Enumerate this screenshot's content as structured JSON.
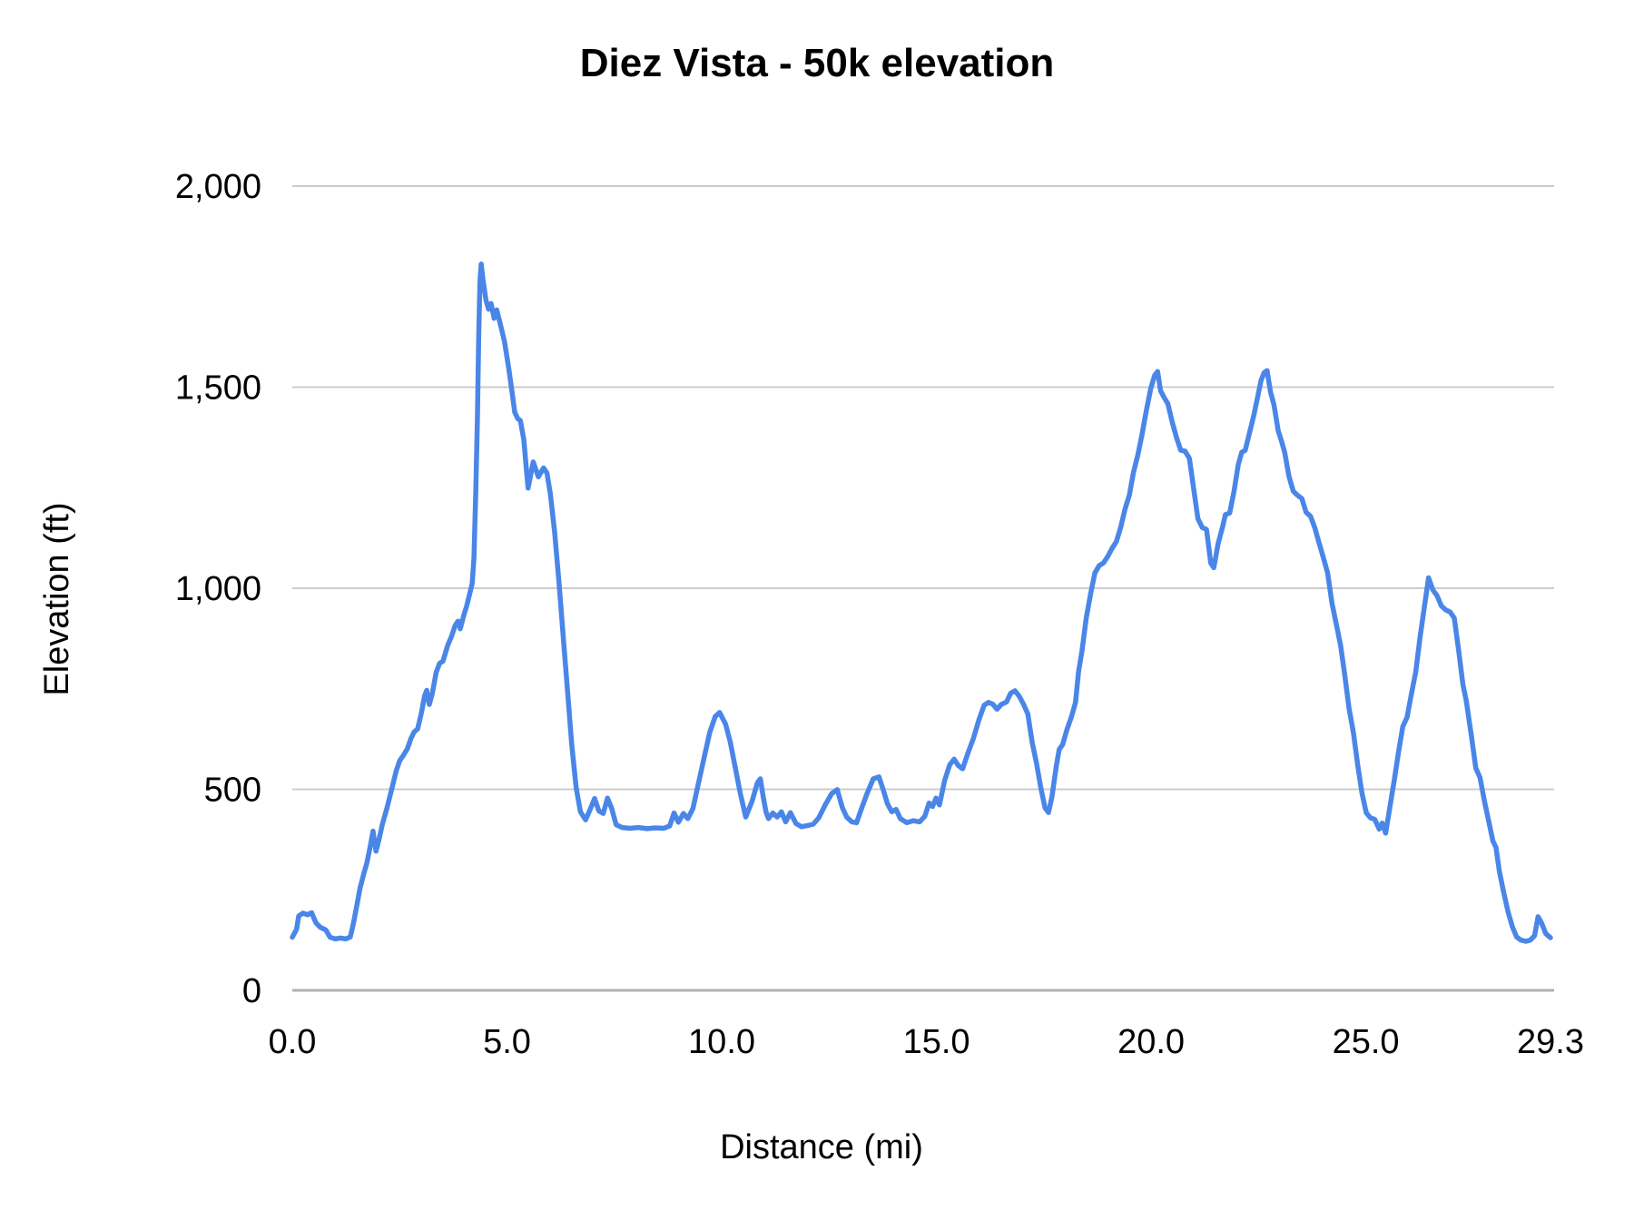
{
  "chart_data": {
    "type": "line",
    "title": "Diez Vista - 50k elevation",
    "xlabel": "Distance (mi)",
    "ylabel": "Elevation (ft)",
    "xlim": [
      0,
      29.3
    ],
    "ylim": [
      0,
      2000
    ],
    "grid": "horizontal-only",
    "legend_position": "none",
    "line_color": "#4a86e8",
    "gridline_color": "#cccccc",
    "baseline_color": "#b0b0b0",
    "text_color": "#000000",
    "background_color": "#ffffff",
    "x_ticks": [
      {
        "value": 0,
        "label": "0.0"
      },
      {
        "value": 5,
        "label": "5.0"
      },
      {
        "value": 10,
        "label": "10.0"
      },
      {
        "value": 15,
        "label": "15.0"
      },
      {
        "value": 20,
        "label": "20.0"
      },
      {
        "value": 25,
        "label": "25.0"
      },
      {
        "value": 29.3,
        "label": "29.3"
      }
    ],
    "y_ticks": [
      {
        "value": 0,
        "label": "0"
      },
      {
        "value": 500,
        "label": "500"
      },
      {
        "value": 1000,
        "label": "1,000"
      },
      {
        "value": 1500,
        "label": "1,500"
      },
      {
        "value": 2000,
        "label": "2,000"
      }
    ],
    "series": [
      {
        "name": "elevation",
        "points": [
          [
            0,
            132
          ],
          [
            0.1,
            152
          ],
          [
            0.15,
            185
          ],
          [
            0.25,
            192
          ],
          [
            0.35,
            188
          ],
          [
            0.45,
            193
          ],
          [
            0.55,
            168
          ],
          [
            0.65,
            157
          ],
          [
            0.78,
            150
          ],
          [
            0.88,
            132
          ],
          [
            1,
            128
          ],
          [
            1.12,
            130
          ],
          [
            1.25,
            128
          ],
          [
            1.35,
            133
          ],
          [
            1.42,
            165
          ],
          [
            1.5,
            210
          ],
          [
            1.58,
            255
          ],
          [
            1.66,
            288
          ],
          [
            1.74,
            318
          ],
          [
            1.81,
            355
          ],
          [
            1.88,
            396
          ],
          [
            1.95,
            346
          ],
          [
            2.02,
            376
          ],
          [
            2.1,
            414
          ],
          [
            2.2,
            452
          ],
          [
            2.32,
            502
          ],
          [
            2.42,
            546
          ],
          [
            2.5,
            571
          ],
          [
            2.58,
            583
          ],
          [
            2.68,
            601
          ],
          [
            2.76,
            626
          ],
          [
            2.84,
            643
          ],
          [
            2.92,
            650
          ],
          [
            3.01,
            692
          ],
          [
            3.08,
            732
          ],
          [
            3.13,
            746
          ],
          [
            3.19,
            711
          ],
          [
            3.26,
            738
          ],
          [
            3.35,
            791
          ],
          [
            3.43,
            813
          ],
          [
            3.51,
            819
          ],
          [
            3.62,
            858
          ],
          [
            3.71,
            881
          ],
          [
            3.79,
            907
          ],
          [
            3.86,
            918
          ],
          [
            3.91,
            899
          ],
          [
            3.99,
            931
          ],
          [
            4.06,
            956
          ],
          [
            4.13,
            986
          ],
          [
            4.19,
            1012
          ],
          [
            4.23,
            1075
          ],
          [
            4.27,
            1230
          ],
          [
            4.31,
            1420
          ],
          [
            4.34,
            1620
          ],
          [
            4.37,
            1762
          ],
          [
            4.4,
            1806
          ],
          [
            4.44,
            1768
          ],
          [
            4.51,
            1717
          ],
          [
            4.57,
            1694
          ],
          [
            4.63,
            1708
          ],
          [
            4.7,
            1671
          ],
          [
            4.76,
            1692
          ],
          [
            4.84,
            1658
          ],
          [
            4.94,
            1614
          ],
          [
            5.04,
            1547
          ],
          [
            5.11,
            1494
          ],
          [
            5.18,
            1438
          ],
          [
            5.25,
            1422
          ],
          [
            5.31,
            1417
          ],
          [
            5.39,
            1370
          ],
          [
            5.49,
            1249
          ],
          [
            5.61,
            1314
          ],
          [
            5.73,
            1277
          ],
          [
            5.85,
            1299
          ],
          [
            5.93,
            1287
          ],
          [
            6.01,
            1234
          ],
          [
            6.11,
            1139
          ],
          [
            6.21,
            1014
          ],
          [
            6.31,
            878
          ],
          [
            6.41,
            744
          ],
          [
            6.51,
            609
          ],
          [
            6.61,
            504
          ],
          [
            6.71,
            444
          ],
          [
            6.83,
            424
          ],
          [
            6.94,
            451
          ],
          [
            7.04,
            477
          ],
          [
            7.14,
            446
          ],
          [
            7.24,
            440
          ],
          [
            7.34,
            478
          ],
          [
            7.44,
            452
          ],
          [
            7.54,
            412
          ],
          [
            7.68,
            405
          ],
          [
            7.86,
            403
          ],
          [
            8.06,
            405
          ],
          [
            8.26,
            402
          ],
          [
            8.46,
            404
          ],
          [
            8.65,
            403
          ],
          [
            8.79,
            409
          ],
          [
            8.89,
            441
          ],
          [
            8.99,
            418
          ],
          [
            9.11,
            440
          ],
          [
            9.21,
            427
          ],
          [
            9.33,
            452
          ],
          [
            9.46,
            516
          ],
          [
            9.59,
            578
          ],
          [
            9.72,
            641
          ],
          [
            9.85,
            681
          ],
          [
            9.95,
            691
          ],
          [
            10.09,
            662
          ],
          [
            10.2,
            617
          ],
          [
            10.31,
            557
          ],
          [
            10.43,
            491
          ],
          [
            10.56,
            431
          ],
          [
            10.71,
            471
          ],
          [
            10.83,
            516
          ],
          [
            10.9,
            526
          ],
          [
            10.97,
            479
          ],
          [
            11.03,
            444
          ],
          [
            11.09,
            427
          ],
          [
            11.19,
            441
          ],
          [
            11.29,
            431
          ],
          [
            11.39,
            444
          ],
          [
            11.49,
            419
          ],
          [
            11.6,
            442
          ],
          [
            11.73,
            415
          ],
          [
            11.86,
            407
          ],
          [
            12,
            410
          ],
          [
            12.13,
            413
          ],
          [
            12.26,
            429
          ],
          [
            12.41,
            461
          ],
          [
            12.56,
            489
          ],
          [
            12.69,
            499
          ],
          [
            12.81,
            454
          ],
          [
            12.91,
            431
          ],
          [
            13.03,
            419
          ],
          [
            13.14,
            417
          ],
          [
            13.26,
            453
          ],
          [
            13.39,
            491
          ],
          [
            13.53,
            526
          ],
          [
            13.66,
            531
          ],
          [
            13.76,
            499
          ],
          [
            13.86,
            464
          ],
          [
            13.96,
            444
          ],
          [
            14.06,
            450
          ],
          [
            14.16,
            427
          ],
          [
            14.31,
            417
          ],
          [
            14.46,
            422
          ],
          [
            14.61,
            419
          ],
          [
            14.73,
            433
          ],
          [
            14.83,
            466
          ],
          [
            14.91,
            457
          ],
          [
            14.99,
            478
          ],
          [
            15.07,
            461
          ],
          [
            15.19,
            521
          ],
          [
            15.31,
            561
          ],
          [
            15.41,
            575
          ],
          [
            15.51,
            559
          ],
          [
            15.61,
            551
          ],
          [
            15.73,
            589
          ],
          [
            15.86,
            626
          ],
          [
            15.99,
            673
          ],
          [
            16.11,
            709
          ],
          [
            16.21,
            716
          ],
          [
            16.31,
            712
          ],
          [
            16.41,
            699
          ],
          [
            16.51,
            711
          ],
          [
            16.63,
            717
          ],
          [
            16.73,
            739
          ],
          [
            16.83,
            745
          ],
          [
            16.93,
            731
          ],
          [
            17.03,
            711
          ],
          [
            17.13,
            687
          ],
          [
            17.23,
            617
          ],
          [
            17.33,
            565
          ],
          [
            17.43,
            504
          ],
          [
            17.53,
            454
          ],
          [
            17.61,
            442
          ],
          [
            17.69,
            481
          ],
          [
            17.79,
            556
          ],
          [
            17.86,
            599
          ],
          [
            17.94,
            611
          ],
          [
            18.04,
            649
          ],
          [
            18.14,
            679
          ],
          [
            18.24,
            716
          ],
          [
            18.31,
            792
          ],
          [
            18.39,
            844
          ],
          [
            18.49,
            926
          ],
          [
            18.59,
            986
          ],
          [
            18.69,
            1038
          ],
          [
            18.79,
            1056
          ],
          [
            18.89,
            1063
          ],
          [
            18.99,
            1079
          ],
          [
            19.09,
            1099
          ],
          [
            19.19,
            1116
          ],
          [
            19.29,
            1151
          ],
          [
            19.39,
            1196
          ],
          [
            19.49,
            1231
          ],
          [
            19.59,
            1289
          ],
          [
            19.69,
            1331
          ],
          [
            19.79,
            1383
          ],
          [
            19.89,
            1443
          ],
          [
            19.99,
            1496
          ],
          [
            20.08,
            1529
          ],
          [
            20.15,
            1539
          ],
          [
            20.22,
            1491
          ],
          [
            20.31,
            1473
          ],
          [
            20.39,
            1459
          ],
          [
            20.49,
            1413
          ],
          [
            20.59,
            1375
          ],
          [
            20.69,
            1343
          ],
          [
            20.79,
            1341
          ],
          [
            20.89,
            1323
          ],
          [
            20.99,
            1248
          ],
          [
            21.09,
            1173
          ],
          [
            21.19,
            1151
          ],
          [
            21.29,
            1146
          ],
          [
            21.39,
            1062
          ],
          [
            21.46,
            1051
          ],
          [
            21.56,
            1111
          ],
          [
            21.66,
            1151
          ],
          [
            21.73,
            1183
          ],
          [
            21.83,
            1187
          ],
          [
            21.93,
            1241
          ],
          [
            22.03,
            1308
          ],
          [
            22.11,
            1338
          ],
          [
            22.19,
            1343
          ],
          [
            22.29,
            1386
          ],
          [
            22.39,
            1429
          ],
          [
            22.49,
            1481
          ],
          [
            22.56,
            1517
          ],
          [
            22.63,
            1536
          ],
          [
            22.7,
            1541
          ],
          [
            22.78,
            1488
          ],
          [
            22.86,
            1456
          ],
          [
            22.96,
            1391
          ],
          [
            23.03,
            1368
          ],
          [
            23.11,
            1338
          ],
          [
            23.21,
            1278
          ],
          [
            23.31,
            1241
          ],
          [
            23.41,
            1231
          ],
          [
            23.51,
            1223
          ],
          [
            23.61,
            1189
          ],
          [
            23.71,
            1179
          ],
          [
            23.81,
            1151
          ],
          [
            23.91,
            1113
          ],
          [
            24.01,
            1076
          ],
          [
            24.11,
            1038
          ],
          [
            24.21,
            964
          ],
          [
            24.31,
            911
          ],
          [
            24.41,
            859
          ],
          [
            24.51,
            784
          ],
          [
            24.61,
            701
          ],
          [
            24.71,
            641
          ],
          [
            24.81,
            561
          ],
          [
            24.91,
            491
          ],
          [
            25.01,
            441
          ],
          [
            25.11,
            429
          ],
          [
            25.21,
            425
          ],
          [
            25.31,
            401
          ],
          [
            25.38,
            416
          ],
          [
            25.46,
            391
          ],
          [
            25.56,
            456
          ],
          [
            25.66,
            521
          ],
          [
            25.76,
            591
          ],
          [
            25.86,
            656
          ],
          [
            25.96,
            679
          ],
          [
            26.06,
            736
          ],
          [
            26.16,
            791
          ],
          [
            26.26,
            876
          ],
          [
            26.36,
            951
          ],
          [
            26.46,
            1026
          ],
          [
            26.56,
            996
          ],
          [
            26.66,
            981
          ],
          [
            26.76,
            956
          ],
          [
            26.86,
            946
          ],
          [
            26.96,
            941
          ],
          [
            27.06,
            926
          ],
          [
            27.16,
            846
          ],
          [
            27.26,
            761
          ],
          [
            27.34,
            719
          ],
          [
            27.46,
            631
          ],
          [
            27.56,
            553
          ],
          [
            27.66,
            529
          ],
          [
            27.76,
            471
          ],
          [
            27.86,
            421
          ],
          [
            27.96,
            371
          ],
          [
            28.03,
            356
          ],
          [
            28.11,
            296
          ],
          [
            28.21,
            244
          ],
          [
            28.31,
            196
          ],
          [
            28.41,
            159
          ],
          [
            28.51,
            133
          ],
          [
            28.61,
            125
          ],
          [
            28.73,
            122
          ],
          [
            28.83,
            125
          ],
          [
            28.93,
            136
          ],
          [
            29.01,
            183
          ],
          [
            29.09,
            168
          ],
          [
            29.19,
            141
          ],
          [
            29.3,
            131
          ]
        ]
      }
    ]
  }
}
